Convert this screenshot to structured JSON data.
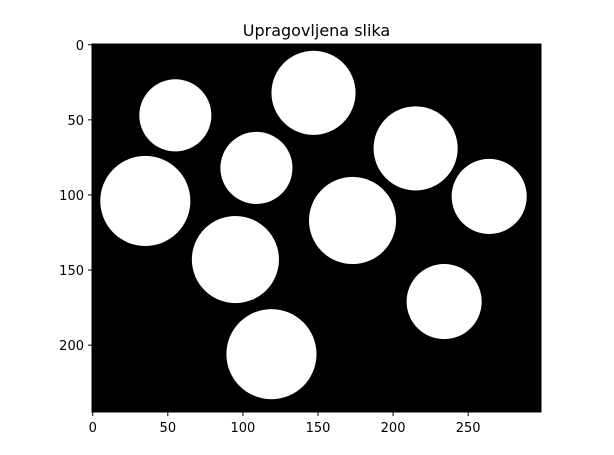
{
  "chart_data": {
    "type": "image",
    "title": "Upragovljena slika",
    "image_width": 299,
    "image_height": 245,
    "xlim": [
      -0.5,
      298.5
    ],
    "ylim": [
      244.5,
      -0.5
    ],
    "x_ticks": [
      0,
      50,
      100,
      150,
      200,
      250
    ],
    "y_ticks": [
      0,
      50,
      100,
      150,
      200
    ],
    "background_color": "#000000",
    "foreground_color": "#ffffff",
    "blobs": [
      {
        "cx": 55,
        "cy": 47,
        "r": 24
      },
      {
        "cx": 147,
        "cy": 32,
        "r": 28
      },
      {
        "cx": 215,
        "cy": 69,
        "r": 28
      },
      {
        "cx": 109,
        "cy": 82,
        "r": 24
      },
      {
        "cx": 35,
        "cy": 104,
        "r": 30
      },
      {
        "cx": 173,
        "cy": 117,
        "r": 29
      },
      {
        "cx": 264,
        "cy": 101,
        "r": 25
      },
      {
        "cx": 95,
        "cy": 143,
        "r": 29
      },
      {
        "cx": 234,
        "cy": 171,
        "r": 25
      },
      {
        "cx": 119,
        "cy": 206,
        "r": 30
      }
    ]
  }
}
